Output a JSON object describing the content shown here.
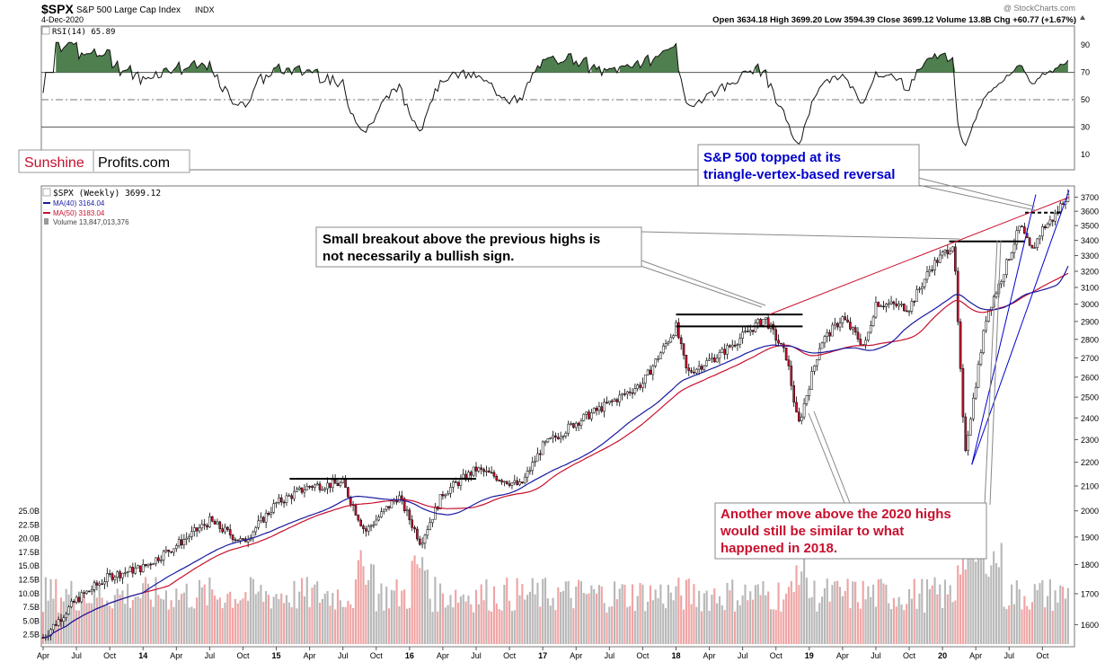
{
  "header": {
    "symbol": "$SPX",
    "name": "S&P 500 Large Cap Index",
    "exchange": "INDX",
    "date": "4-Dec-2020",
    "watermark": "@ StockCharts.com",
    "ohlc": "Open 3634.18  High 3699.20  Low 3594.39  Close 3699.12  Volume 13.8B  Chg +60.77 (+1.67%)"
  },
  "logo": {
    "part1": "Sunshine",
    "part2": "Profits.com"
  },
  "rsi": {
    "label": "RSI(14) 65.89",
    "ticks": [
      90,
      70,
      50,
      30,
      10
    ],
    "overbought": 70,
    "oversold": 30,
    "mid": 50
  },
  "legend": {
    "price": "$SPX (Weekly) 3699.12",
    "ma40": "MA(40) 3164.04",
    "ma50": "MA(50) 3183.04",
    "volume": "Volume 13,847,013,376"
  },
  "colors": {
    "ma40": "#1a1aa0",
    "ma50": "#c8102e",
    "rsi_fill": "#4f7f4f",
    "volume_up": "#b8b8b8",
    "volume_down": "#f0a4a4",
    "annotation_blue": "#0000cc",
    "annotation_red": "#c8102e",
    "logo_red": "#c8102e"
  },
  "annotations": [
    {
      "id": "triangle",
      "line1": "S&P 500 topped at its",
      "line2": "triangle-vertex-based reversal"
    },
    {
      "id": "breakout",
      "line1": "Small breakout above the previous highs is",
      "line2": "not necessarily a bullish sign."
    },
    {
      "id": "another",
      "line1": "Another move above the 2020 highs",
      "line2": "would still be similar to what",
      "line3": "happened in 2018."
    }
  ],
  "chart_data": {
    "type": "line",
    "title": "$SPX S&P 500 Large Cap Index",
    "ylim": [
      1500,
      3750
    ],
    "y_scale": "log",
    "y_ticks": [
      3700,
      3600,
      3500,
      3400,
      3300,
      3200,
      3100,
      3000,
      2900,
      2800,
      2700,
      2600,
      2500,
      2400,
      2300,
      2200,
      2100,
      2000,
      1900,
      1800,
      1700,
      1600
    ],
    "volume_ticks": [
      "25.0B",
      "22.5B",
      "20.0B",
      "17.5B",
      "15.0B",
      "12.5B",
      "10.0B",
      "7.5B",
      "5.0B",
      "2.5B"
    ],
    "x_ticks": [
      "Apr",
      "Jul",
      "Oct",
      "14",
      "Apr",
      "Jul",
      "Oct",
      "15",
      "Apr",
      "Jul",
      "Oct",
      "16",
      "Apr",
      "Jul",
      "Oct",
      "17",
      "Apr",
      "Jul",
      "Oct",
      "18",
      "Apr",
      "Jul",
      "Oct",
      "19",
      "Apr",
      "Jul",
      "Oct",
      "20",
      "Apr",
      "Jul",
      "Oct"
    ],
    "x_range": [
      "2013-04",
      "2020-12"
    ],
    "price_path": [
      [
        "2013-04",
        1560
      ],
      [
        "2013-07",
        1680
      ],
      [
        "2013-10",
        1760
      ],
      [
        "2014-01",
        1790
      ],
      [
        "2014-04",
        1870
      ],
      [
        "2014-07",
        1960
      ],
      [
        "2014-10",
        1880
      ],
      [
        "2015-01",
        2030
      ],
      [
        "2015-04",
        2100
      ],
      [
        "2015-07",
        2110
      ],
      [
        "2015-09",
        1920
      ],
      [
        "2015-12",
        2060
      ],
      [
        "2016-02",
        1880
      ],
      [
        "2016-04",
        2070
      ],
      [
        "2016-07",
        2170
      ],
      [
        "2016-11",
        2100
      ],
      [
        "2017-01",
        2270
      ],
      [
        "2017-04",
        2380
      ],
      [
        "2017-07",
        2470
      ],
      [
        "2017-10",
        2570
      ],
      [
        "2018-01",
        2870
      ],
      [
        "2018-02",
        2620
      ],
      [
        "2018-05",
        2720
      ],
      [
        "2018-09",
        2920
      ],
      [
        "2018-11",
        2700
      ],
      [
        "2018-12",
        2360
      ],
      [
        "2019-02",
        2780
      ],
      [
        "2019-04",
        2920
      ],
      [
        "2019-06",
        2760
      ],
      [
        "2019-07",
        3010
      ],
      [
        "2019-10",
        2980
      ],
      [
        "2019-12",
        3230
      ],
      [
        "2020-02",
        3380
      ],
      [
        "2020-03",
        2240
      ],
      [
        "2020-05",
        2950
      ],
      [
        "2020-06",
        3100
      ],
      [
        "2020-08",
        3500
      ],
      [
        "2020-09",
        3320
      ],
      [
        "2020-10",
        3480
      ],
      [
        "2020-11",
        3550
      ],
      [
        "2020-12",
        3699.12
      ]
    ],
    "series": [
      {
        "name": "MA(40)",
        "last": 3164.04
      },
      {
        "name": "MA(50)",
        "last": 3183.04
      }
    ],
    "horizontal_levels": [
      2130,
      2872,
      2940,
      3393,
      3590
    ]
  }
}
